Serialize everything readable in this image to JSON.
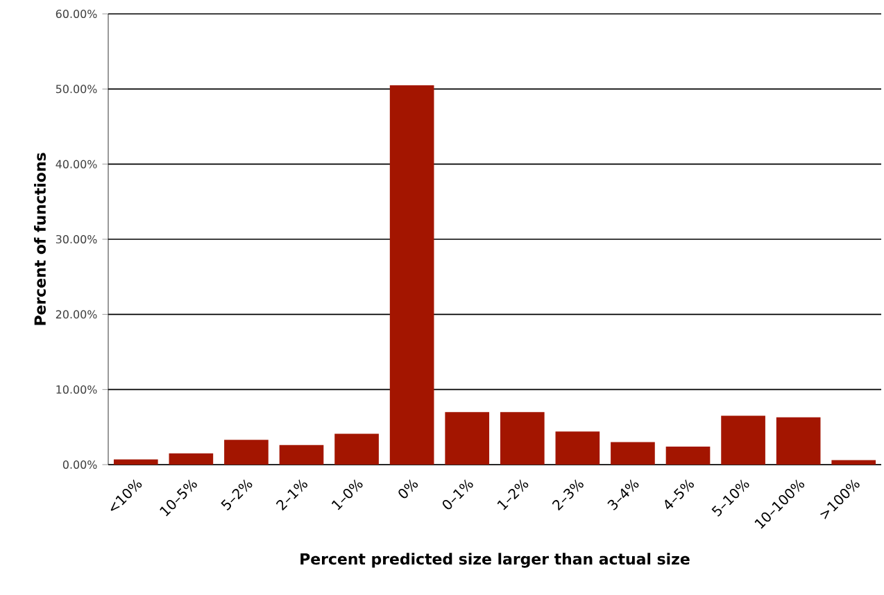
{
  "chart_data": {
    "type": "bar",
    "xlabel": "Percent predicted size larger than actual size",
    "ylabel": "Percent of functions",
    "categories": [
      "<10%",
      "10–5%",
      "5–2%",
      "2–1%",
      "1–0%",
      "0%",
      "0–1%",
      "1–2%",
      "2–3%",
      "3–4%",
      "4–5%",
      "5–10%",
      "10–100%",
      ">100%"
    ],
    "values": [
      0.7,
      1.5,
      3.3,
      2.6,
      4.1,
      50.5,
      7.0,
      7.0,
      4.4,
      3.0,
      2.4,
      6.5,
      6.3,
      0.6
    ],
    "color": "#a31500",
    "ylim": [
      0,
      60
    ],
    "yticks": [
      {
        "value": 0,
        "label": "0.00%"
      },
      {
        "value": 10,
        "label": "10.00%"
      },
      {
        "value": 20,
        "label": "20.00%"
      },
      {
        "value": 30,
        "label": "30.00%"
      },
      {
        "value": 40,
        "label": "40.00%"
      },
      {
        "value": 50,
        "label": "50.00%"
      },
      {
        "value": 60,
        "label": "60.00%"
      }
    ],
    "grid": "y"
  }
}
